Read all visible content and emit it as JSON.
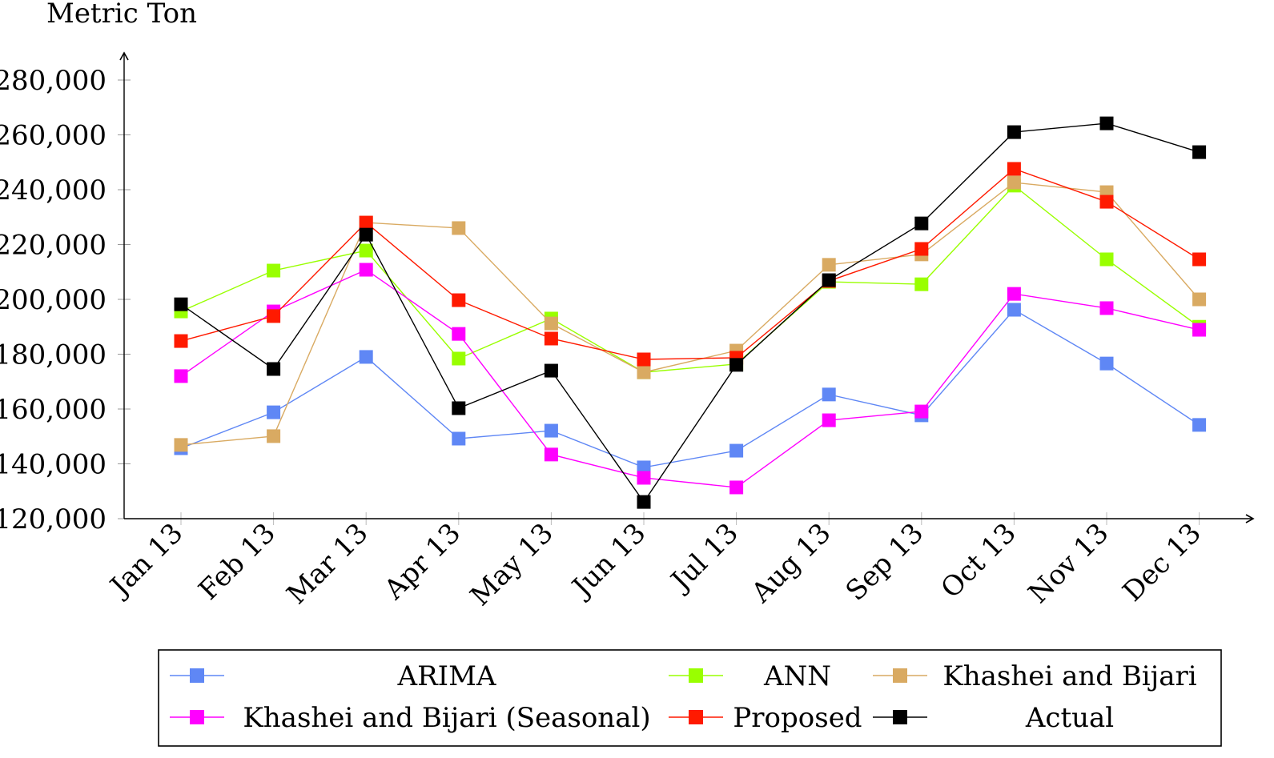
{
  "chart_data": {
    "type": "line",
    "title": "",
    "ylabel": "Metric Ton",
    "xlabel": "",
    "ylim": [
      120000,
      280000
    ],
    "yticks": [
      120000,
      140000,
      160000,
      180000,
      200000,
      220000,
      240000,
      260000,
      280000
    ],
    "ytick_labels": [
      "120,000",
      "140,000",
      "160,000",
      "180,000",
      "200,000",
      "220,000",
      "240,000",
      "260,000",
      "280,000"
    ],
    "categories": [
      "Jan 13",
      "Feb 13",
      "Mar 13",
      "Apr 13",
      "May 13",
      "Jun 13",
      "Jul 13",
      "Aug 13",
      "Sep 13",
      "Oct 13",
      "Nov 13",
      "Dec 13"
    ],
    "grid": false,
    "legend_position": "bottom",
    "marker": "square",
    "series": [
      {
        "name": "ARIMA",
        "color": "#5f87f5",
        "values": [
          145700,
          158800,
          179000,
          149200,
          152100,
          138700,
          144800,
          165300,
          157700,
          196200,
          176600,
          154200
        ]
      },
      {
        "name": "ANN",
        "color": "#99ff00",
        "values": [
          195600,
          210500,
          217800,
          178400,
          193000,
          173400,
          176400,
          206400,
          205500,
          241500,
          214600,
          190000
        ]
      },
      {
        "name": "Khashei and Bijari",
        "color": "#d9aa62",
        "values": [
          146900,
          150100,
          228000,
          226000,
          191200,
          173400,
          181300,
          212600,
          216400,
          242600,
          239100,
          200000
        ]
      },
      {
        "name": "Khashei and Bijari (Seasonal)",
        "color": "#ff00ff",
        "values": [
          172000,
          195600,
          210800,
          187400,
          143400,
          134900,
          131400,
          155900,
          159100,
          202000,
          196800,
          188900
        ]
      },
      {
        "name": "Proposed",
        "color": "#ff1a00",
        "values": [
          184800,
          193900,
          228000,
          199700,
          185700,
          178100,
          178700,
          206700,
          218400,
          247600,
          235600,
          214600
        ]
      },
      {
        "name": "Actual",
        "color": "#000000",
        "values": [
          198200,
          174600,
          223600,
          160300,
          174000,
          126100,
          176100,
          207000,
          227700,
          261000,
          264200,
          253700
        ]
      }
    ]
  }
}
